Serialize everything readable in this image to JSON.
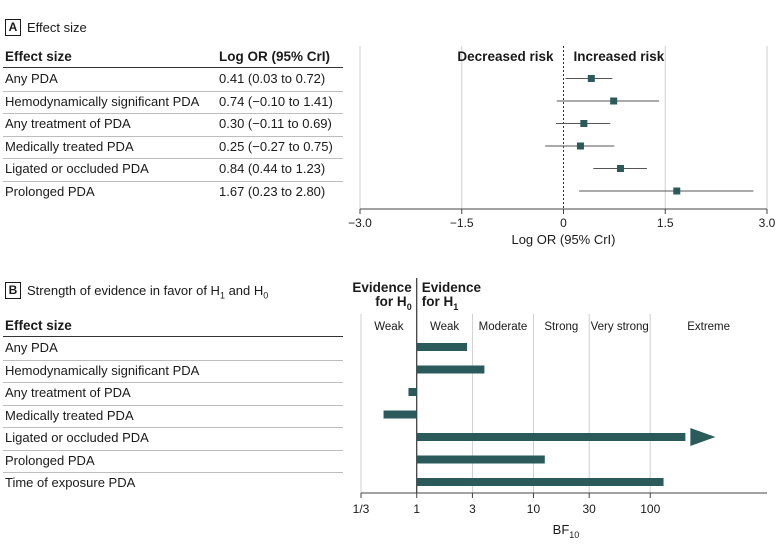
{
  "panel_a": {
    "letter": "A",
    "title": "Effect size",
    "col_header_label": "Effect size",
    "col_header_value": "Log OR (95% CrI)",
    "rows": [
      {
        "label": "Any PDA",
        "value": "0.41 (0.03 to 0.72)"
      },
      {
        "label": "Hemodynamically significant PDA",
        "value": "0.74 (−0.10 to 1.41)"
      },
      {
        "label": "Any treatment of PDA",
        "value": "0.30 (−0.11 to 0.69)"
      },
      {
        "label": "Medically treated PDA",
        "value": "0.25 (−0.27 to 0.75)"
      },
      {
        "label": "Ligated or occluded PDA",
        "value": "0.84 (0.44 to 1.23)"
      },
      {
        "label": "Prolonged PDA",
        "value": "1.67 (0.23 to 2.80)"
      }
    ]
  },
  "panel_b": {
    "letter": "B",
    "title_prefix": "Strength of evidence in favor of H",
    "title_sub1": "1",
    "title_and": " and H",
    "title_sub0": "0",
    "col_header_label": "Effect size",
    "rows": [
      {
        "label": "Any PDA"
      },
      {
        "label": "Hemodynamically significant PDA"
      },
      {
        "label": "Any treatment of PDA"
      },
      {
        "label": "Medically treated PDA"
      },
      {
        "label": "Ligated or occluded PDA"
      },
      {
        "label": "Prolonged PDA"
      },
      {
        "label": "Time of exposure PDA"
      }
    ]
  },
  "chart_data": [
    {
      "type": "forest",
      "xlabel": "Log OR (95% CrI)",
      "xlim": [
        -3.0,
        3.0
      ],
      "xticks": [
        -3.0,
        -1.5,
        0,
        1.5,
        3.0
      ],
      "xtick_labels": [
        "−3.0",
        "−1.5",
        "0",
        "1.5",
        "3.0"
      ],
      "annotation_left": "Decreased risk",
      "annotation_right": "Increased risk",
      "reference_line": 0,
      "vertical_grid": true,
      "marker_color": "#2a5a5a",
      "categories": [
        "Any PDA",
        "Hemodynamically significant PDA",
        "Any treatment of PDA",
        "Medically treated PDA",
        "Ligated or occluded PDA",
        "Prolonged PDA"
      ],
      "estimates": [
        0.41,
        0.74,
        0.3,
        0.25,
        0.84,
        1.67
      ],
      "lower": [
        0.03,
        -0.1,
        -0.11,
        -0.27,
        0.44,
        0.23
      ],
      "upper": [
        0.72,
        1.41,
        0.69,
        0.75,
        1.23,
        2.8
      ]
    },
    {
      "type": "bar",
      "orientation": "horizontal",
      "scale": "log",
      "xlabel_main": "BF",
      "xlabel_sub": "10",
      "xticks": [
        0.3333,
        1,
        3,
        10,
        30,
        100
      ],
      "xtick_labels": [
        "1/3",
        "1",
        "3",
        "10",
        "30",
        "100"
      ],
      "xlim": [
        0.3333,
        1000
      ],
      "baseline": 1,
      "bar_color": "#2a5a5a",
      "categories": [
        "Any PDA",
        "Hemodynamically significant PDA",
        "Any treatment of PDA",
        "Medically treated PDA",
        "Ligated or occluded PDA",
        "Prolonged PDA",
        "Time of exposure PDA"
      ],
      "values": [
        2.7,
        3.8,
        0.85,
        0.52,
        200,
        12.5,
        130
      ],
      "arrow_on": [
        false,
        false,
        false,
        false,
        true,
        false,
        false
      ],
      "header_h0_line1": "Evidence",
      "header_h0_line2": "for H",
      "header_h0_sub": "0",
      "header_h1_line1": "Evidence",
      "header_h1_line2": "for H",
      "header_h1_sub": "1",
      "bands": [
        {
          "label": "Weak",
          "from": 0.3333,
          "to": 1
        },
        {
          "label": "Weak",
          "from": 1,
          "to": 3
        },
        {
          "label": "Moderate",
          "from": 3,
          "to": 10
        },
        {
          "label": "Strong",
          "from": 10,
          "to": 30
        },
        {
          "label": "Very strong",
          "from": 30,
          "to": 100
        },
        {
          "label": "Extreme",
          "from": 100,
          "to": 1000
        }
      ]
    }
  ]
}
